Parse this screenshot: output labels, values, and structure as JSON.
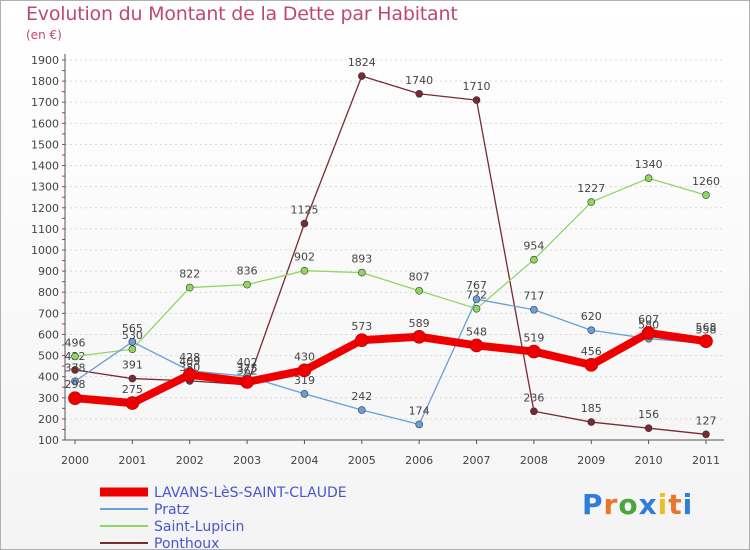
{
  "title": "Evolution du Montant de la Dette par Habitant",
  "subtitle": "(en €)",
  "logo_text": "Proxiti",
  "colors": {
    "title": "#c0486f",
    "legend_text": "#4a55cc",
    "axis": "#555555",
    "grid": "#d8d8d8"
  },
  "chart_data": {
    "type": "line",
    "x": [
      "2000",
      "2001",
      "2002",
      "2003",
      "2004",
      "2005",
      "2006",
      "2007",
      "2008",
      "2009",
      "2010",
      "2011"
    ],
    "ylim": [
      100,
      1900
    ],
    "yticks": [
      100,
      200,
      300,
      400,
      500,
      600,
      700,
      800,
      900,
      1000,
      1100,
      1200,
      1300,
      1400,
      1500,
      1600,
      1700,
      1800,
      1900
    ],
    "legend_position": "bottom-left",
    "series": [
      {
        "name": "LAVANS-LèS-SAINT-CLAUDE",
        "color": "#ee0000",
        "values": [
          298,
          275,
          409,
          375,
          430,
          573,
          589,
          548,
          519,
          456,
          607,
          568
        ]
      },
      {
        "name": "Pratz",
        "color": "#6a9fd8",
        "values": [
          378,
          565,
          428,
          402,
          319,
          242,
          174,
          767,
          717,
          620,
          580,
          558
        ]
      },
      {
        "name": "Saint-Lupicin",
        "color": "#8ed860",
        "values": [
          496,
          530,
          822,
          836,
          902,
          893,
          807,
          722,
          954,
          1227,
          1340,
          1260
        ]
      },
      {
        "name": "Ponthoux",
        "color": "#7a2a32",
        "values": [
          432,
          391,
          380,
          362,
          1125,
          1824,
          1740,
          1710,
          236,
          185,
          156,
          127
        ]
      }
    ]
  }
}
